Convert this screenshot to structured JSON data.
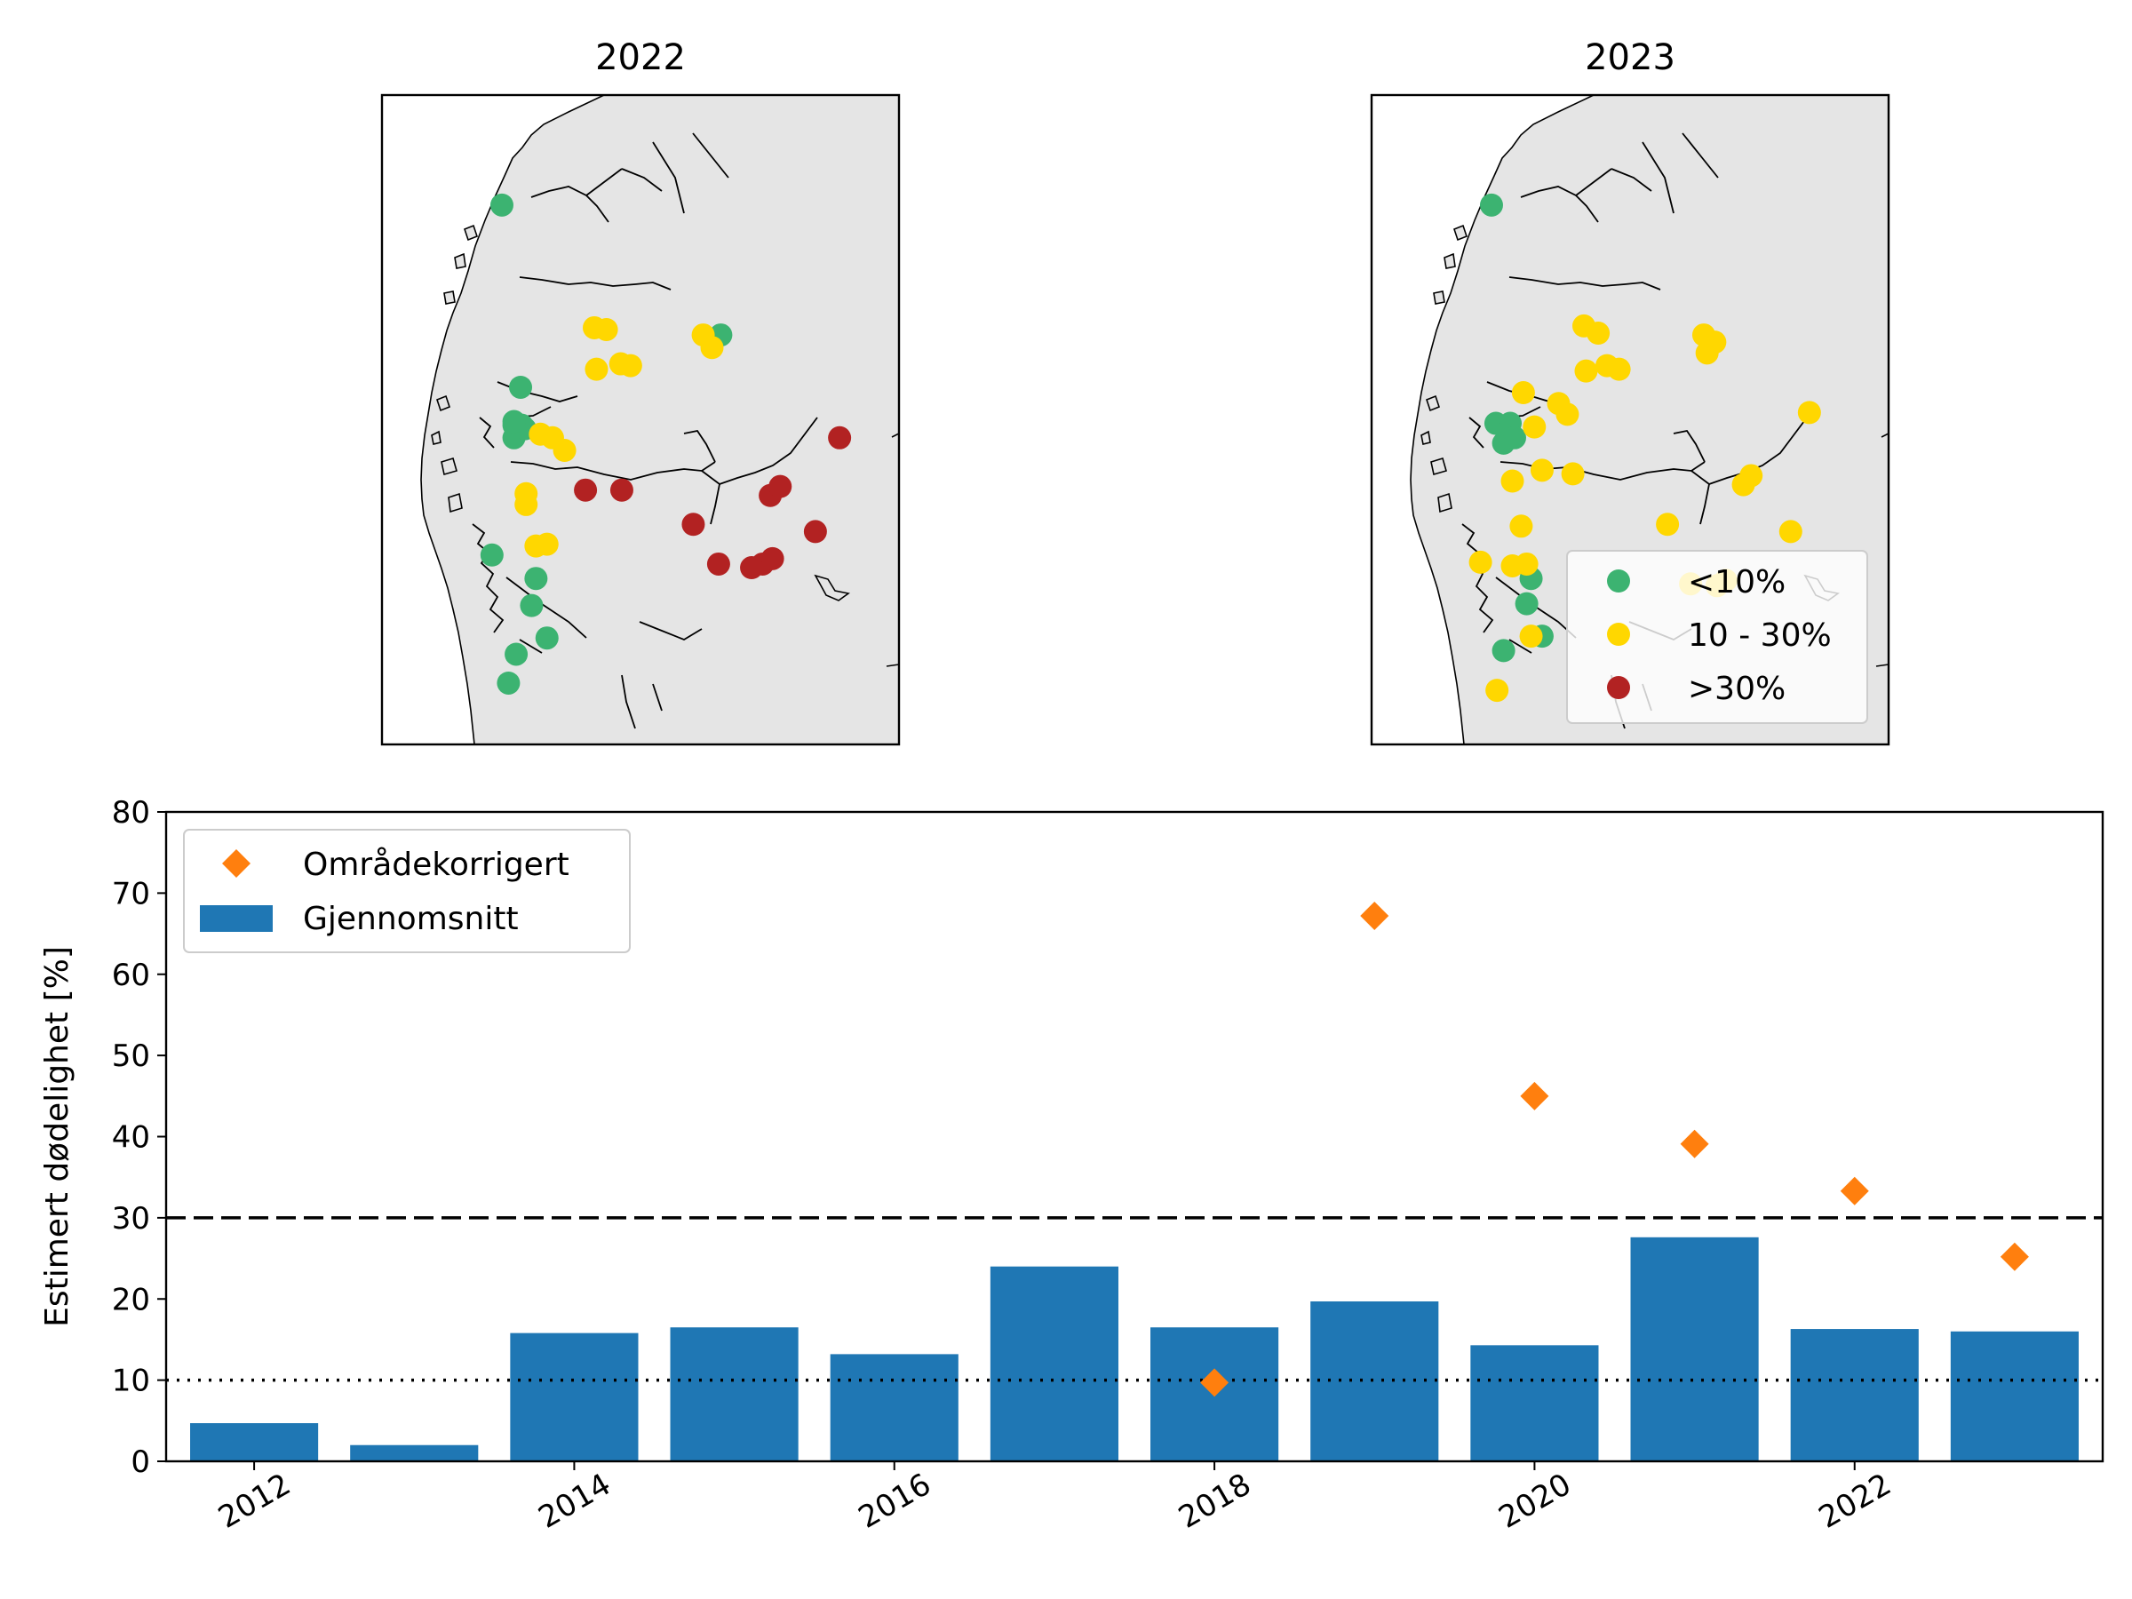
{
  "chart_data": [
    {
      "type": "map",
      "title": "2022",
      "legend_present": false,
      "categories": [
        {
          "key": "low",
          "label": "<10%",
          "color": "#3cb371"
        },
        {
          "key": "mid",
          "label": "10 - 30%",
          "color": "#ffd700"
        },
        {
          "key": "high",
          "label": ">30%",
          "color": "#b22222"
        }
      ],
      "points_lonlat": {
        "low": [
          [
            5.09,
            62.29
          ],
          [
            5.26,
            61.28
          ],
          [
            5.2,
            61.07
          ],
          [
            5.27,
            61.07
          ],
          [
            5.2,
            61.0
          ],
          [
            5.3,
            61.05
          ],
          [
            5.0,
            60.35
          ],
          [
            5.4,
            60.22
          ],
          [
            5.36,
            60.07
          ],
          [
            5.5,
            59.89
          ],
          [
            5.22,
            59.8
          ],
          [
            5.15,
            59.64
          ],
          [
            7.08,
            61.57
          ],
          [
            5.2,
            61.09
          ]
        ],
        "low_note": "decimal degrees",
        "mid": [
          [
            5.93,
            61.61
          ],
          [
            6.04,
            61.6
          ],
          [
            5.95,
            61.38
          ],
          [
            6.17,
            61.41
          ],
          [
            6.26,
            61.4
          ],
          [
            6.92,
            61.57
          ],
          [
            7.0,
            61.5
          ],
          [
            5.55,
            61.0
          ],
          [
            5.66,
            60.93
          ],
          [
            5.31,
            60.63
          ],
          [
            5.4,
            60.4
          ],
          [
            5.5,
            60.41
          ],
          [
            5.44,
            61.02
          ],
          [
            5.31,
            60.69
          ]
        ],
        "high": [
          [
            5.85,
            60.71
          ],
          [
            6.18,
            60.71
          ],
          [
            6.83,
            60.52
          ],
          [
            7.53,
            60.68
          ],
          [
            7.62,
            60.73
          ],
          [
            7.94,
            60.48
          ],
          [
            8.16,
            61.0
          ],
          [
            7.06,
            60.3
          ],
          [
            7.46,
            60.3
          ],
          [
            7.55,
            60.33
          ],
          [
            7.36,
            60.28
          ]
        ]
      }
    },
    {
      "type": "map",
      "title": "2023",
      "legend_present": true,
      "legend_position": "lower right",
      "categories": [
        {
          "key": "low",
          "label": "<10%",
          "color": "#3cb371"
        },
        {
          "key": "mid",
          "label": "10 - 30%",
          "color": "#ffd700"
        },
        {
          "key": "high",
          "label": ">30%",
          "color": "#b22222"
        }
      ],
      "points_lonlat": {
        "low": [
          [
            5.09,
            62.29
          ],
          [
            5.13,
            61.08
          ],
          [
            5.26,
            61.08
          ],
          [
            5.2,
            60.97
          ],
          [
            5.45,
            60.22
          ],
          [
            5.41,
            60.08
          ],
          [
            5.55,
            59.9
          ],
          [
            5.2,
            59.82
          ],
          [
            5.3,
            61.0
          ]
        ],
        "mid": [
          [
            5.93,
            61.62
          ],
          [
            6.06,
            61.58
          ],
          [
            5.95,
            61.37
          ],
          [
            6.14,
            61.4
          ],
          [
            6.25,
            61.38
          ],
          [
            7.02,
            61.57
          ],
          [
            7.12,
            61.53
          ],
          [
            7.05,
            61.47
          ],
          [
            5.38,
            61.25
          ],
          [
            5.7,
            61.19
          ],
          [
            5.78,
            61.13
          ],
          [
            5.48,
            61.06
          ],
          [
            5.55,
            60.82
          ],
          [
            5.83,
            60.8
          ],
          [
            5.28,
            60.76
          ],
          [
            5.36,
            60.51
          ],
          [
            4.99,
            60.31
          ],
          [
            5.28,
            60.29
          ],
          [
            5.41,
            60.3
          ],
          [
            6.69,
            60.52
          ],
          [
            7.98,
            61.14
          ],
          [
            7.38,
            60.74
          ],
          [
            7.45,
            60.79
          ],
          [
            7.81,
            60.48
          ],
          [
            6.9,
            60.19
          ],
          [
            7.14,
            60.18
          ],
          [
            7.22,
            60.21
          ],
          [
            5.45,
            59.9
          ],
          [
            5.14,
            59.6
          ]
        ],
        "high": []
      }
    },
    {
      "type": "bar",
      "ylabel": "Estimert dødelighet [%]",
      "ylim": [
        0,
        80
      ],
      "xlim": [
        2011.45,
        2023.55
      ],
      "yticks": [
        0,
        10,
        20,
        30,
        40,
        50,
        60,
        70,
        80
      ],
      "xticks": [
        2012,
        2014,
        2016,
        2018,
        2020,
        2022
      ],
      "xtick_rotation": 30,
      "grid": false,
      "legend_position": "upper left",
      "bars": {
        "name": "Gjennomsnitt",
        "color": "#1f77b4",
        "x": [
          2012,
          2013,
          2014,
          2015,
          2016,
          2017,
          2018,
          2019,
          2020,
          2021,
          2022,
          2023
        ],
        "values": [
          4.7,
          2.0,
          15.8,
          16.5,
          13.2,
          24.0,
          16.5,
          19.7,
          14.3,
          27.6,
          16.3,
          16.0
        ]
      },
      "markers": {
        "name": "Områdekorrigert",
        "color": "#ff7f0e",
        "shape": "diamond",
        "x": [
          2018,
          2019,
          2020,
          2021,
          2022,
          2023
        ],
        "values": [
          9.7,
          67.2,
          45.0,
          39.1,
          33.3,
          25.2
        ]
      },
      "reference_lines": [
        {
          "y": 30,
          "style": "dashed",
          "color": "#000000"
        },
        {
          "y": 10,
          "style": "dotted",
          "color": "#000000"
        }
      ]
    }
  ]
}
